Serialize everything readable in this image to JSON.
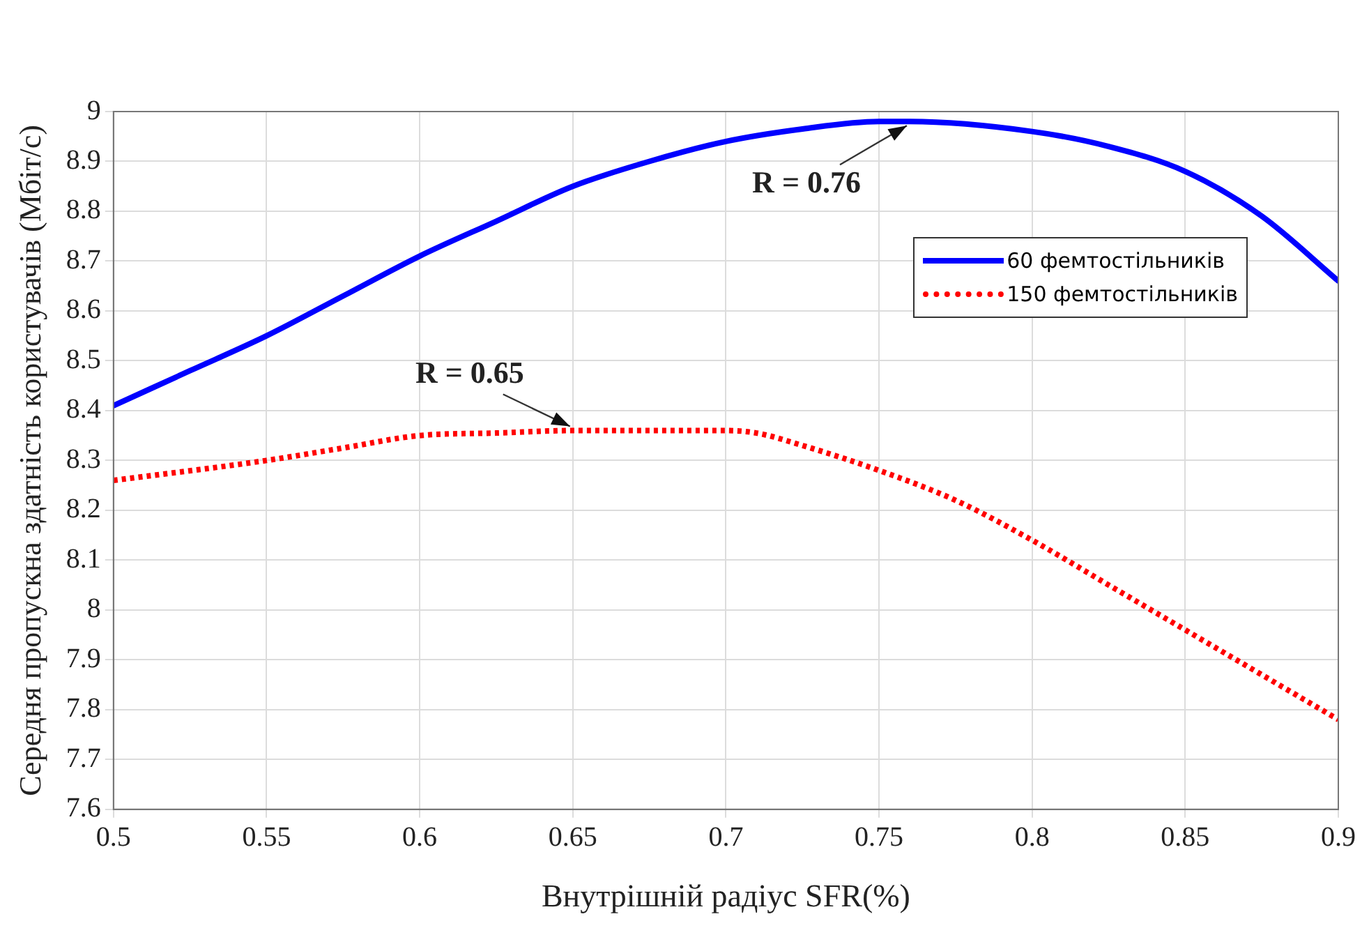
{
  "chart_data": {
    "type": "line",
    "xlabel": "Внутрішній радіус SFR(%)",
    "ylabel": "Середня пропускна здатність користувачів (Мбіт/с)",
    "xlim": [
      0.5,
      0.9
    ],
    "xticks": [
      0.5,
      0.55,
      0.6,
      0.65,
      0.7,
      0.75,
      0.8,
      0.85,
      0.9
    ],
    "ylim": [
      7.6,
      9
    ],
    "yticks": [
      7.6,
      7.7,
      7.8,
      7.9,
      8,
      8.1,
      8.2,
      8.3,
      8.4,
      8.5,
      8.6,
      8.7,
      8.8,
      8.9,
      9
    ],
    "grid": true,
    "legend": "top right",
    "marker": "none",
    "series": [
      {
        "name": "60 фемтостільників",
        "color": "#0000ff",
        "line_style": "solid",
        "x": [
          0.5,
          0.525,
          0.55,
          0.575,
          0.6,
          0.625,
          0.65,
          0.675,
          0.7,
          0.725,
          0.75,
          0.76,
          0.8,
          0.825,
          0.85,
          0.875,
          0.9
        ],
        "values": [
          8.41,
          8.48,
          8.55,
          8.63,
          8.71,
          8.78,
          8.85,
          8.9,
          8.94,
          8.965,
          8.98,
          8.98,
          8.96,
          8.93,
          8.88,
          8.79,
          8.66
        ]
      },
      {
        "name": "150 фемтостільників",
        "color": "#ff0000",
        "line_style": "dotted",
        "x": [
          0.5,
          0.55,
          0.575,
          0.6,
          0.625,
          0.65,
          0.675,
          0.7,
          0.71,
          0.725,
          0.75,
          0.775,
          0.8,
          0.825,
          0.85,
          0.875,
          0.9
        ],
        "values": [
          8.26,
          8.3,
          8.325,
          8.35,
          8.355,
          8.36,
          8.36,
          8.36,
          8.355,
          8.33,
          8.28,
          8.22,
          8.14,
          8.05,
          7.96,
          7.87,
          7.78
        ]
      }
    ],
    "annotations": [
      {
        "text": "R = 0.76",
        "x": 0.76,
        "y": 8.98
      },
      {
        "text": "R = 0.65",
        "x": 0.65,
        "y": 8.36
      }
    ]
  }
}
